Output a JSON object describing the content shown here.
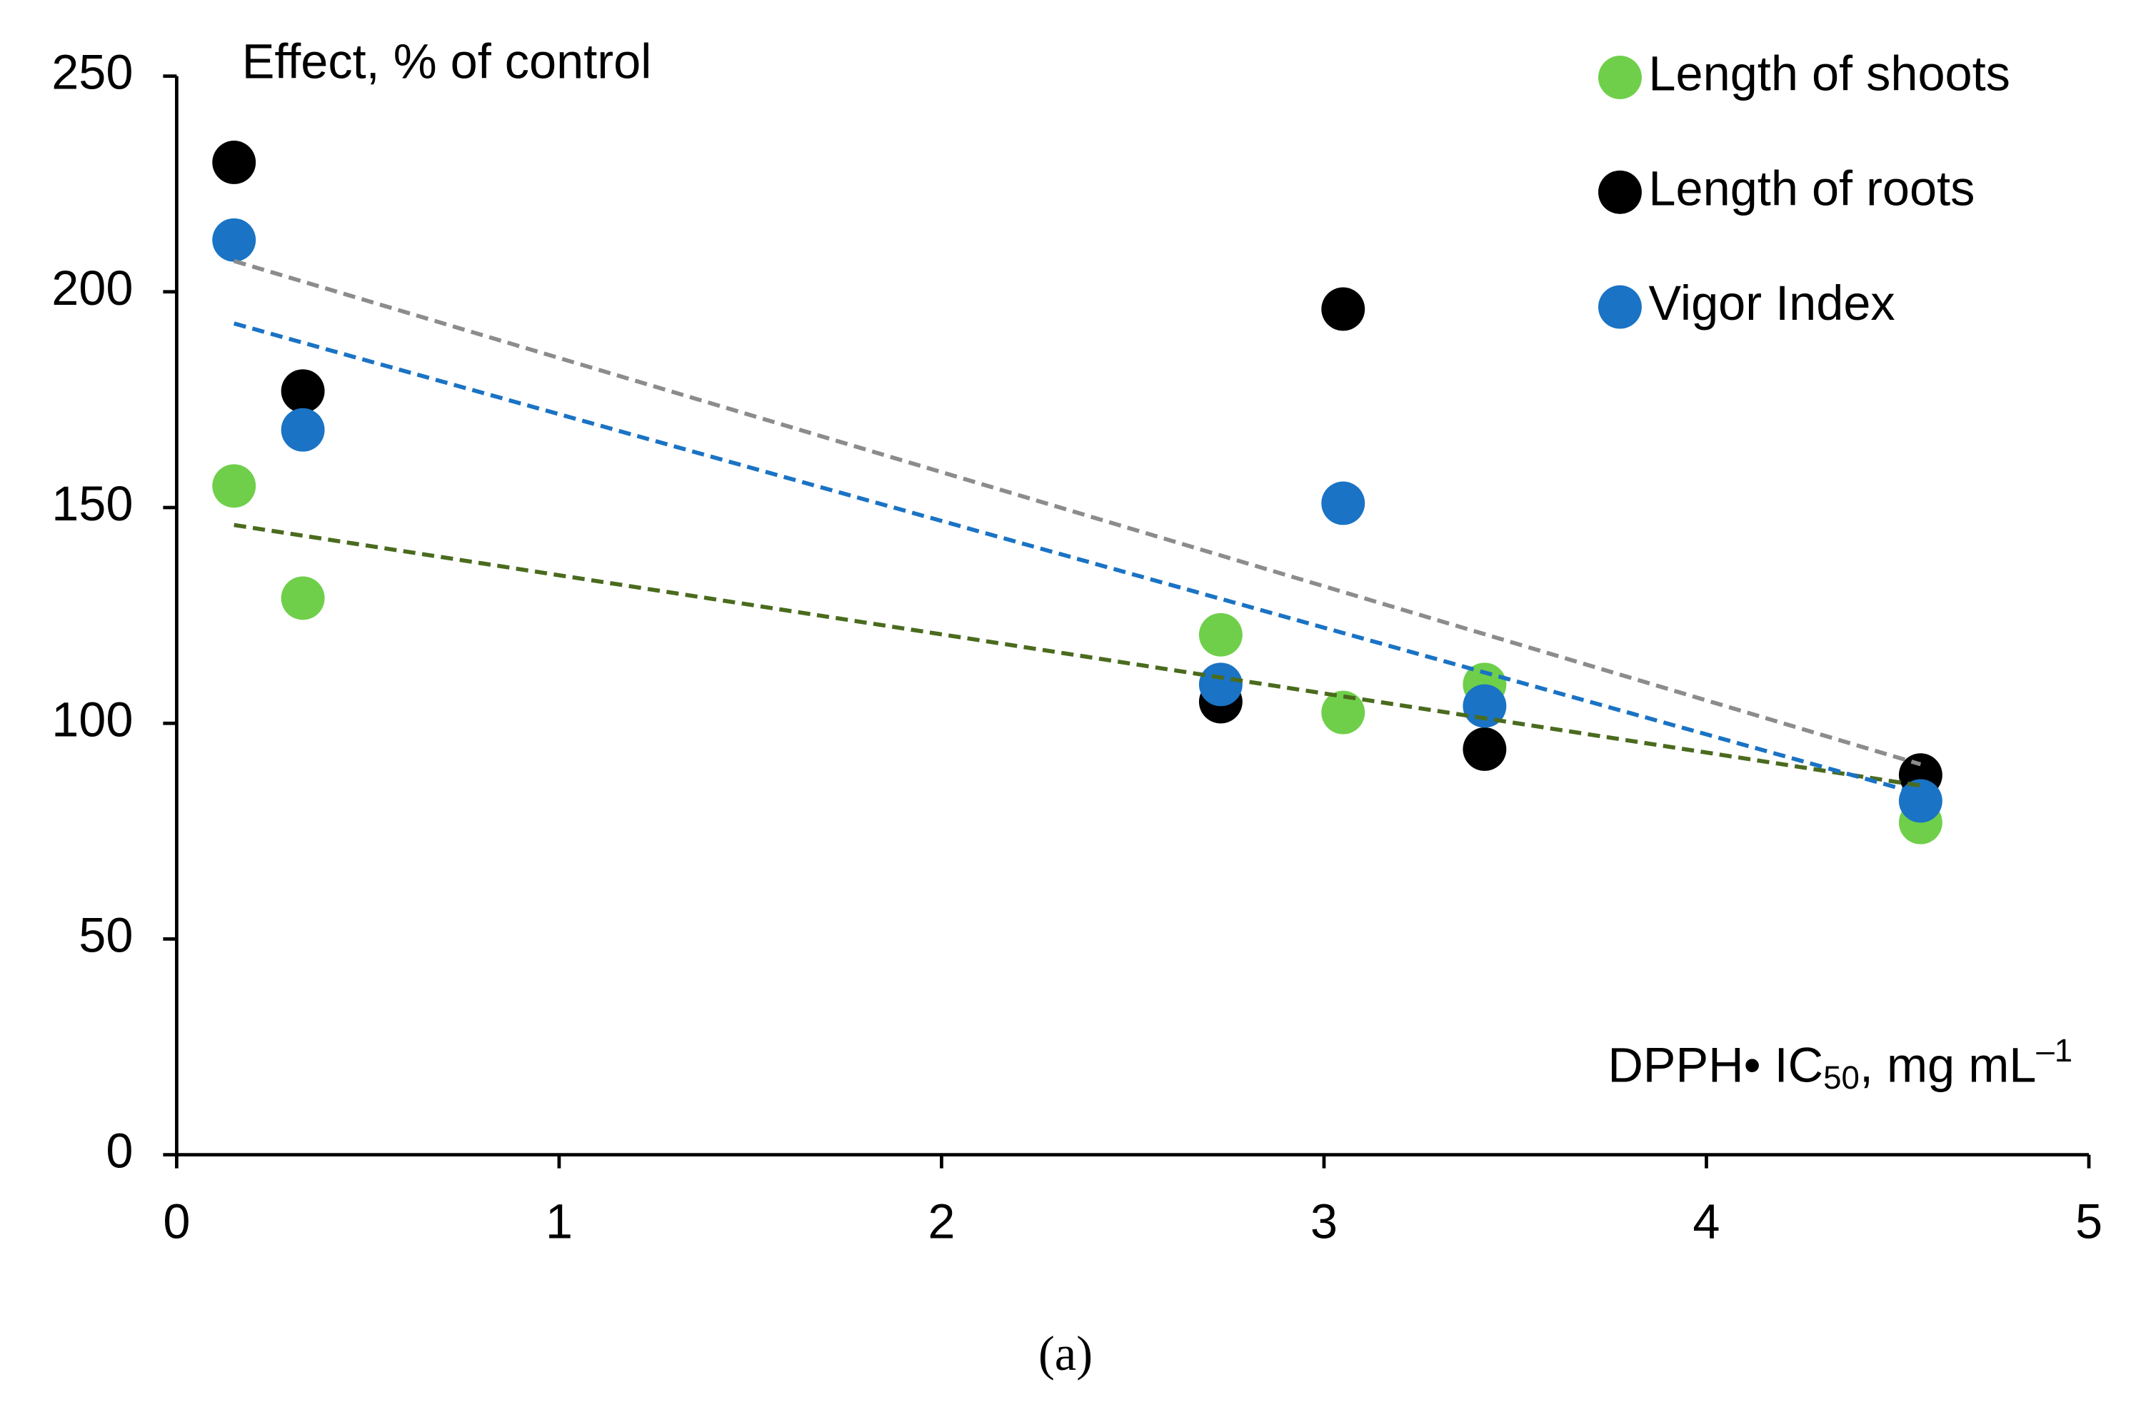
{
  "chart_data": {
    "type": "scatter",
    "title": "Effect, % of control",
    "x_label": [
      "DPPH• IC",
      "50",
      ", mg mL",
      "–1"
    ],
    "caption": "(a)",
    "xlim": [
      0,
      5
    ],
    "xticks": [
      0,
      1,
      2,
      3,
      4,
      5
    ],
    "ylim": [
      0,
      250
    ],
    "yticks": [
      0,
      50,
      100,
      150,
      200,
      250
    ],
    "grid": false,
    "legend": "top-right",
    "trendline": "linear",
    "x": [
      0.15,
      0.33,
      2.73,
      3.05,
      3.42,
      4.56
    ],
    "series": [
      {
        "name": "Length of shoots",
        "color": "#6fcf4a",
        "trend_color": "#4a6b1e",
        "values": [
          155,
          129,
          120.5,
          102.5,
          109,
          77
        ]
      },
      {
        "name": "Length of roots",
        "color": "#000000",
        "trend_color": "#8c8c8c",
        "values": [
          230,
          177,
          105,
          196,
          94,
          88
        ]
      },
      {
        "name": "Vigor Index",
        "color": "#1a73c4",
        "trend_color": "#1a73c4",
        "values": [
          212,
          168,
          109,
          151,
          104,
          82
        ]
      }
    ]
  }
}
